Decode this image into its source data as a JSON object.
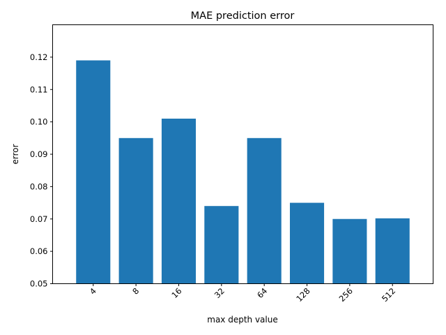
{
  "chart_data": {
    "type": "bar",
    "title": "MAE prediction error",
    "xlabel": "max depth value",
    "ylabel": "error",
    "categories": [
      "4",
      "8",
      "16",
      "32",
      "64",
      "128",
      "256",
      "512"
    ],
    "values": [
      0.119,
      0.095,
      0.101,
      0.074,
      0.095,
      0.075,
      0.07,
      0.0702
    ],
    "ylim": [
      0.05,
      0.13
    ],
    "yticks": [
      "0.05",
      "0.06",
      "0.07",
      "0.08",
      "0.09",
      "0.10",
      "0.11",
      "0.12"
    ],
    "bar_color": "#1f77b4",
    "grid": false,
    "xtick_rotation_deg": 45
  }
}
